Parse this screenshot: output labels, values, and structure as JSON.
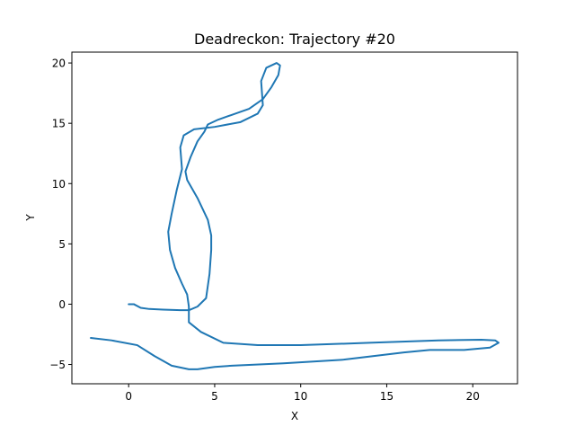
{
  "chart_data": {
    "type": "line",
    "title": "Deadreckon: Trajectory #20",
    "xlabel": "X",
    "ylabel": "Y",
    "xlim": [
      -3.3,
      22.6
    ],
    "ylim": [
      -6.6,
      20.9
    ],
    "xticks": [
      0,
      5,
      10,
      15,
      20
    ],
    "yticks": [
      -5,
      0,
      5,
      10,
      15,
      20
    ],
    "grid": false,
    "series": [
      {
        "color": "#1f77b4",
        "x": [
          0.0,
          0.3,
          0.7,
          1.2,
          2.0,
          3.0,
          3.5,
          4.0,
          4.5,
          4.7,
          4.8,
          4.8,
          4.6,
          4.0,
          3.4,
          3.3,
          3.6,
          4.0,
          4.4,
          4.6,
          5.2,
          6.0,
          7.0,
          7.8,
          8.3,
          8.7,
          8.8,
          8.6,
          8.0,
          7.7,
          7.8,
          7.5,
          6.5,
          5.0,
          3.8,
          3.2,
          3.0,
          3.1,
          2.8,
          2.5,
          2.3,
          2.4,
          2.7,
          3.1,
          3.4,
          3.5,
          3.5,
          4.2,
          5.5,
          7.5,
          10.0,
          14.0,
          18.0,
          20.5,
          21.3,
          21.5,
          21.0,
          19.5,
          17.5,
          16.0,
          12.5,
          9.0,
          6.0,
          5.0,
          4.0,
          3.5,
          2.5,
          1.5,
          0.5,
          -1.0,
          -2.2
        ],
        "y": [
          0.0,
          0.0,
          -0.3,
          -0.4,
          -0.45,
          -0.5,
          -0.5,
          -0.2,
          0.5,
          2.5,
          4.5,
          5.7,
          7.0,
          8.8,
          10.3,
          11.0,
          12.2,
          13.5,
          14.3,
          14.9,
          15.3,
          15.7,
          16.2,
          17.0,
          18.0,
          19.0,
          19.8,
          20.0,
          19.6,
          18.5,
          16.5,
          15.8,
          15.1,
          14.7,
          14.5,
          14.0,
          13.0,
          11.2,
          9.5,
          7.5,
          6.0,
          4.5,
          3.0,
          1.7,
          0.8,
          -0.2,
          -1.5,
          -2.3,
          -3.2,
          -3.4,
          -3.4,
          -3.2,
          -3.0,
          -2.95,
          -3.0,
          -3.2,
          -3.6,
          -3.8,
          -3.8,
          -4.0,
          -4.6,
          -4.9,
          -5.1,
          -5.2,
          -5.4,
          -5.4,
          -5.1,
          -4.3,
          -3.4,
          -3.0,
          -2.8
        ]
      }
    ]
  }
}
